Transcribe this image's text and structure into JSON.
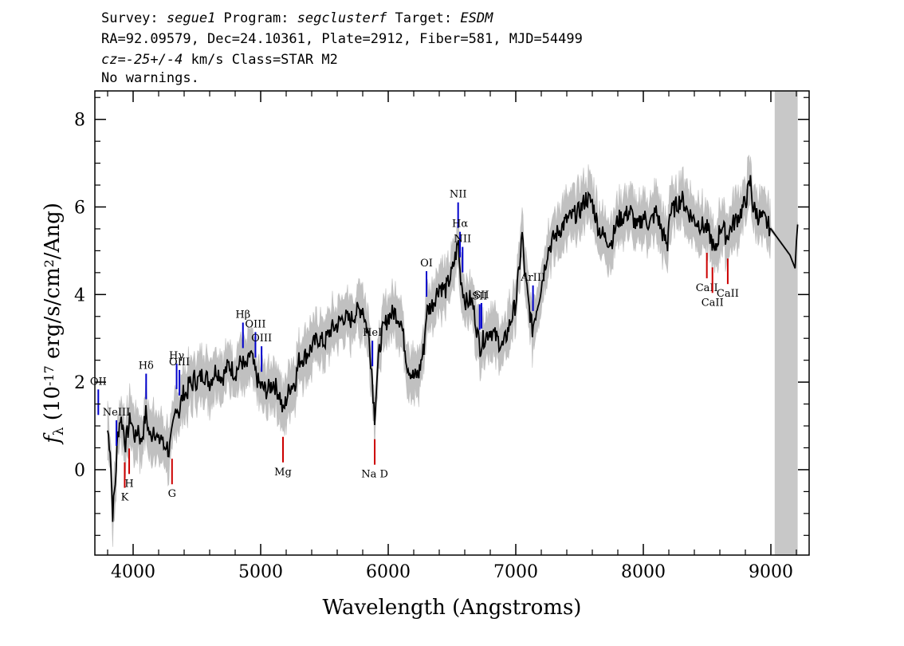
{
  "header": {
    "line1": [
      {
        "text": "Survey: ",
        "italic": false
      },
      {
        "text": "segue1",
        "italic": true
      },
      {
        "text": " Program: ",
        "italic": false
      },
      {
        "text": "segclusterf",
        "italic": true
      },
      {
        "text": " Target: ",
        "italic": false
      },
      {
        "text": "ESDM",
        "italic": true
      }
    ],
    "line2": "RA=92.09579, Dec=24.10361, Plate=2912, Fiber=581, MJD=54499",
    "line3": [
      {
        "text": "cz=-25+/-4",
        "italic": true
      },
      {
        "text": " km/s Class=STAR M2",
        "italic": false
      }
    ],
    "line4": "No warnings."
  },
  "chart_data": {
    "type": "line",
    "xlabel": "Wavelength (Angstroms)",
    "ylabel": "f_λ (10^-17 erg/s/cm^2/Ang)",
    "xlim": [
      3700,
      9300
    ],
    "ylim": [
      -1.95,
      8.65
    ],
    "x_ticks": [
      4000,
      5000,
      6000,
      7000,
      8000,
      9000
    ],
    "y_ticks": [
      0,
      2,
      4,
      6,
      8
    ],
    "masked_region": [
      9030,
      9210
    ],
    "colors": {
      "flux": "#000000",
      "error": "#c0c0c0",
      "emission": "#0000cc",
      "absorption": "#cc0000",
      "mask": "#c8c8c8"
    },
    "series": [
      {
        "name": "",
        "x": [
          3800,
          3820,
          3840,
          3860,
          3880,
          3900,
          3920,
          3940,
          3960,
          3980,
          4000,
          4020,
          4040,
          4060,
          4080,
          4100,
          4120,
          4140,
          4160,
          4180,
          4200,
          4220,
          4240,
          4260,
          4280,
          4300,
          4320,
          4340,
          4360,
          4380,
          4400,
          4420,
          4440,
          4460,
          4480,
          4500,
          4550,
          4600,
          4650,
          4700,
          4750,
          4800,
          4850,
          4880,
          4900,
          4920,
          4950,
          4980,
          5000,
          5050,
          5100,
          5150,
          5175,
          5200,
          5230,
          5270,
          5300,
          5350,
          5400,
          5450,
          5500,
          5550,
          5600,
          5650,
          5700,
          5750,
          5800,
          5820,
          5850,
          5870,
          5893,
          5910,
          5930,
          5950,
          6000,
          6050,
          6100,
          6150,
          6200,
          6240,
          6280,
          6300,
          6350,
          6400,
          6450,
          6500,
          6550,
          6563,
          6580,
          6600,
          6620,
          6640,
          6660,
          6680,
          6700,
          6720,
          6750,
          6800,
          6850,
          6900,
          6950,
          7000,
          7030,
          7050,
          7070,
          7100,
          7130,
          7150,
          7200,
          7250,
          7300,
          7350,
          7400,
          7450,
          7500,
          7550,
          7600,
          7650,
          7700,
          7750,
          7800,
          7850,
          7900,
          7950,
          8000,
          8050,
          8100,
          8150,
          8190,
          8200,
          8250,
          8300,
          8350,
          8400,
          8450,
          8500,
          8540,
          8560,
          8600,
          8620,
          8650,
          8700,
          8750,
          8800,
          8840,
          8860,
          8900,
          8950,
          9000,
          9050,
          9100,
          9150,
          9190,
          9200,
          9210
        ],
        "values": [
          0.9,
          0.5,
          -1.0,
          -0.3,
          0.8,
          1.2,
          1.0,
          0.6,
          0.9,
          1.2,
          0.9,
          0.7,
          1.0,
          0.6,
          0.9,
          1.3,
          0.9,
          0.7,
          1.0,
          0.8,
          0.6,
          0.8,
          0.5,
          0.6,
          0.4,
          0.7,
          1.1,
          1.5,
          1.3,
          1.6,
          1.8,
          1.7,
          2.0,
          1.9,
          2.1,
          2.0,
          2.2,
          2.0,
          2.3,
          2.1,
          2.4,
          2.2,
          2.5,
          2.3,
          2.4,
          2.7,
          2.3,
          2.0,
          1.9,
          1.8,
          2.0,
          1.7,
          1.3,
          1.6,
          1.9,
          2.0,
          2.5,
          2.6,
          2.8,
          3.0,
          2.9,
          3.2,
          3.3,
          3.5,
          3.4,
          3.6,
          3.7,
          3.4,
          3.0,
          2.3,
          1.2,
          2.0,
          2.7,
          3.1,
          3.5,
          3.6,
          3.4,
          2.4,
          2.1,
          2.2,
          2.8,
          3.6,
          3.8,
          4.2,
          4.1,
          4.5,
          5.2,
          4.5,
          4.2,
          3.9,
          3.8,
          3.9,
          3.8,
          3.5,
          3.1,
          2.8,
          3.0,
          3.2,
          3.0,
          2.8,
          3.3,
          3.8,
          4.7,
          5.4,
          4.5,
          3.8,
          3.2,
          3.5,
          4.2,
          5.0,
          5.3,
          5.5,
          5.7,
          5.8,
          5.9,
          6.2,
          6.1,
          5.5,
          5.3,
          5.2,
          5.7,
          5.8,
          5.9,
          5.5,
          5.8,
          5.6,
          5.9,
          5.4,
          5.1,
          5.8,
          6.0,
          6.2,
          5.9,
          5.7,
          5.6,
          5.5,
          5.2,
          4.9,
          5.5,
          5.6,
          5.3,
          5.6,
          5.8,
          6.1,
          6.6,
          6.0,
          5.8,
          5.7,
          5.5,
          5.3,
          5.1,
          4.9,
          4.6,
          5.2,
          5.6
        ]
      }
    ],
    "lines": [
      {
        "label": "OII",
        "wave": 3727,
        "kind": "emission"
      },
      {
        "label": "NeIII",
        "wave": 3869,
        "kind": "emission"
      },
      {
        "label": "Hδ",
        "wave": 4102,
        "kind": "emission"
      },
      {
        "label": "Hγ",
        "wave": 4341,
        "kind": "emission"
      },
      {
        "label": "OIII",
        "wave": 4363,
        "kind": "emission"
      },
      {
        "label": "Hβ",
        "wave": 4861,
        "kind": "emission"
      },
      {
        "label": "OIII",
        "wave": 4959,
        "kind": "emission"
      },
      {
        "label": "OIII",
        "wave": 5007,
        "kind": "emission"
      },
      {
        "label": "HeI",
        "wave": 5876,
        "kind": "emission"
      },
      {
        "label": "OI",
        "wave": 6300,
        "kind": "emission"
      },
      {
        "label": "NII",
        "wave": 6548,
        "kind": "emission"
      },
      {
        "label": "Hα",
        "wave": 6563,
        "kind": "emission"
      },
      {
        "label": "NII",
        "wave": 6583,
        "kind": "emission"
      },
      {
        "label": "SII",
        "wave": 6717,
        "kind": "emission"
      },
      {
        "label": "SII",
        "wave": 6731,
        "kind": "emission"
      },
      {
        "label": "ArIII",
        "wave": 7135,
        "kind": "emission"
      },
      {
        "label": "K",
        "wave": 3934,
        "kind": "absorption"
      },
      {
        "label": "H",
        "wave": 3969,
        "kind": "absorption"
      },
      {
        "label": "G",
        "wave": 4305,
        "kind": "absorption"
      },
      {
        "label": "Mg",
        "wave": 5175,
        "kind": "absorption"
      },
      {
        "label": "Na D",
        "wave": 5894,
        "kind": "absorption"
      },
      {
        "label": "CaII",
        "wave": 8498,
        "kind": "absorption"
      },
      {
        "label": "CaII",
        "wave": 8542,
        "kind": "absorption"
      },
      {
        "label": "CaII",
        "wave": 8662,
        "kind": "absorption"
      }
    ]
  }
}
